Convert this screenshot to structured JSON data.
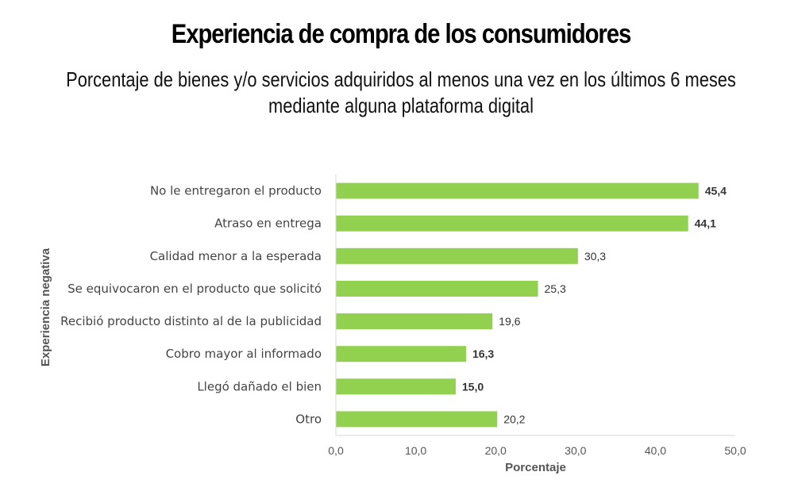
{
  "chart_data": {
    "type": "bar",
    "orientation": "horizontal",
    "title": "Experiencia de compra de los consumidores",
    "subtitle_lines": [
      "Porcentaje de bienes y/o servicios adquiridos al menos una vez en los últimos 6 meses",
      "mediante alguna plataforma digital"
    ],
    "xlabel": "Porcentaje",
    "ylabel": "Experiencia negativa",
    "xlim": [
      0,
      50
    ],
    "xticks": [
      0,
      10,
      20,
      30,
      40,
      50
    ],
    "xtick_labels": [
      "0,0",
      "10,0",
      "20,0",
      "30,0",
      "40,0",
      "50,0"
    ],
    "grid": false,
    "bar_color": "#92d050",
    "categories": [
      "No le entregaron el producto",
      "Atraso en entrega",
      "Calidad menor a la esperada",
      "Se equivocaron en el producto que solicitó",
      "Recibió producto distinto al de la publicidad",
      "Cobro mayor al informado",
      "Llegó dañado el bien",
      "Otro"
    ],
    "values": [
      45.4,
      44.1,
      30.3,
      25.3,
      19.6,
      16.3,
      15.0,
      20.2
    ],
    "value_labels": [
      "45,4",
      "44,1",
      "30,3",
      "25,3",
      "19,6",
      "16,3",
      "15,0",
      "20,2"
    ],
    "bold_labels": [
      true,
      true,
      false,
      false,
      false,
      true,
      true,
      false
    ]
  }
}
